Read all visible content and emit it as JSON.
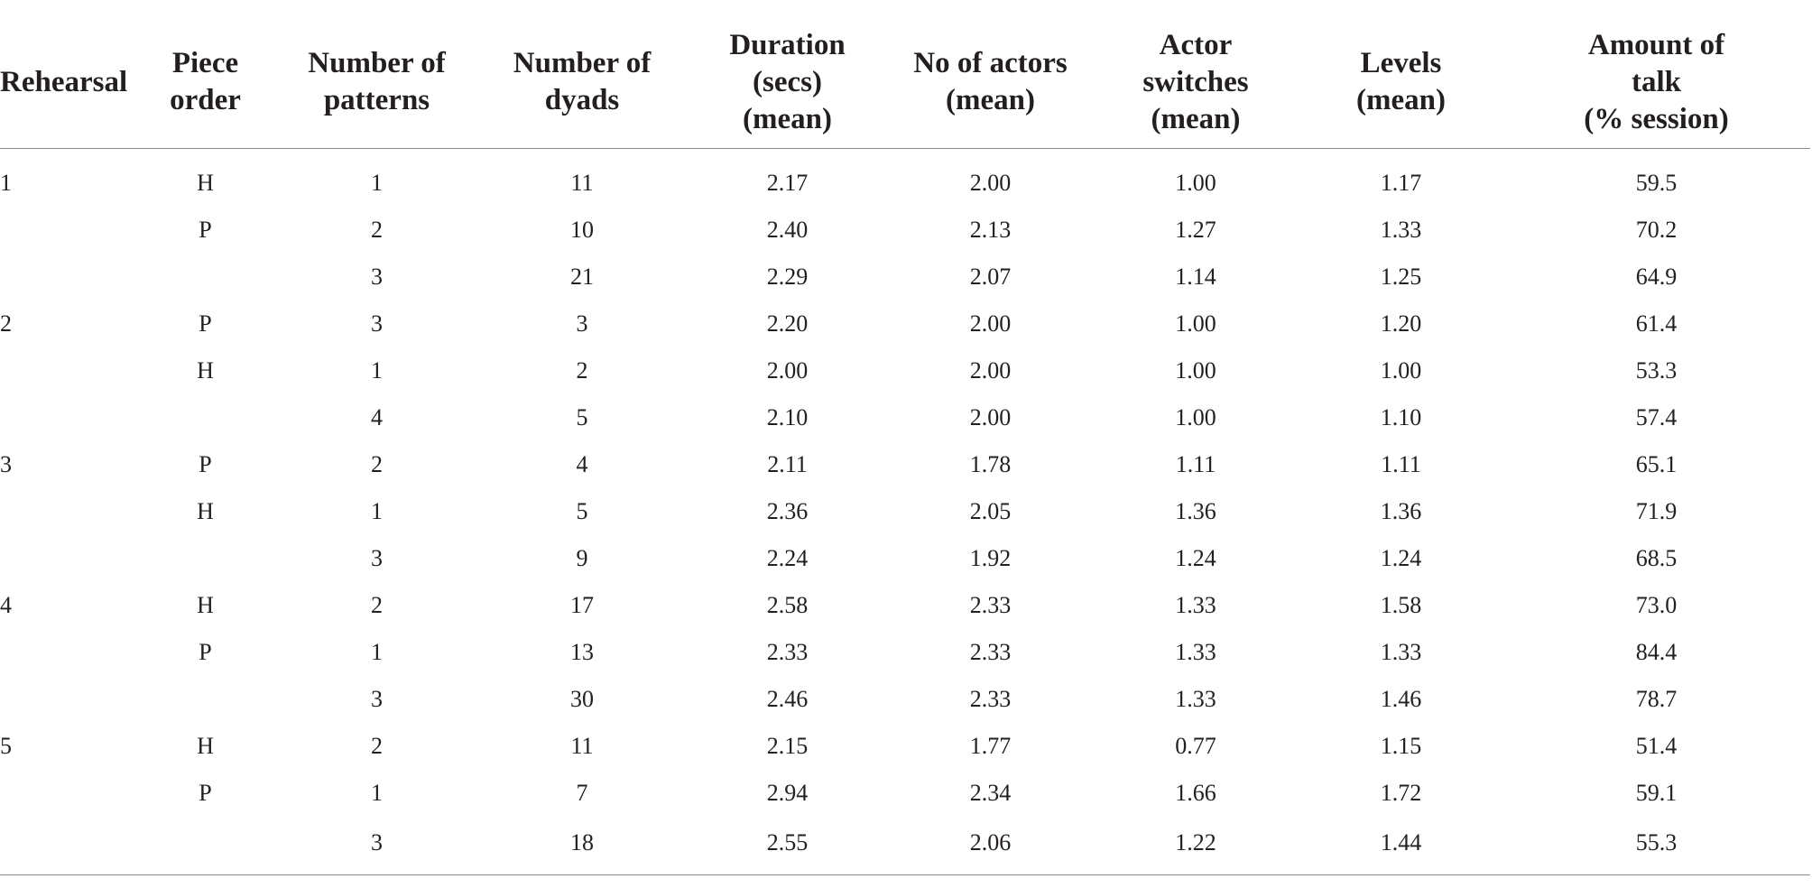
{
  "table": {
    "columns": [
      "Rehearsal",
      "Piece order",
      "Number of\npatterns",
      "Number of\ndyads",
      "Duration\n(secs)\n(mean)",
      "No of actors\n(mean)",
      "Actor\nswitches\n(mean)",
      "Levels\n(mean)",
      "Amount of\ntalk\n(% session)"
    ],
    "rows": [
      [
        "1",
        "H",
        "1",
        "11",
        "2.17",
        "2.00",
        "1.00",
        "1.17",
        "59.5"
      ],
      [
        "",
        "P",
        "2",
        "10",
        "2.40",
        "2.13",
        "1.27",
        "1.33",
        "70.2"
      ],
      [
        "",
        "",
        "3",
        "21",
        "2.29",
        "2.07",
        "1.14",
        "1.25",
        "64.9"
      ],
      [
        "2",
        "P",
        "3",
        "3",
        "2.20",
        "2.00",
        "1.00",
        "1.20",
        "61.4"
      ],
      [
        "",
        "H",
        "1",
        "2",
        "2.00",
        "2.00",
        "1.00",
        "1.00",
        "53.3"
      ],
      [
        "",
        "",
        "4",
        "5",
        "2.10",
        "2.00",
        "1.00",
        "1.10",
        "57.4"
      ],
      [
        "3",
        "P",
        "2",
        "4",
        "2.11",
        "1.78",
        "1.11",
        "1.11",
        "65.1"
      ],
      [
        "",
        "H",
        "1",
        "5",
        "2.36",
        "2.05",
        "1.36",
        "1.36",
        "71.9"
      ],
      [
        "",
        "",
        "3",
        "9",
        "2.24",
        "1.92",
        "1.24",
        "1.24",
        "68.5"
      ],
      [
        "4",
        "H",
        "2",
        "17",
        "2.58",
        "2.33",
        "1.33",
        "1.58",
        "73.0"
      ],
      [
        "",
        "P",
        "1",
        "13",
        "2.33",
        "2.33",
        "1.33",
        "1.33",
        "84.4"
      ],
      [
        "",
        "",
        "3",
        "30",
        "2.46",
        "2.33",
        "1.33",
        "1.46",
        "78.7"
      ],
      [
        "5",
        "H",
        "2",
        "11",
        "2.15",
        "1.77",
        "0.77",
        "1.15",
        "51.4"
      ],
      [
        "",
        "P",
        "1",
        "7",
        "2.94",
        "2.34",
        "1.66",
        "1.72",
        "59.1"
      ],
      [
        "",
        "",
        "3",
        "18",
        "2.55",
        "2.06",
        "1.22",
        "1.44",
        "55.3"
      ]
    ]
  }
}
